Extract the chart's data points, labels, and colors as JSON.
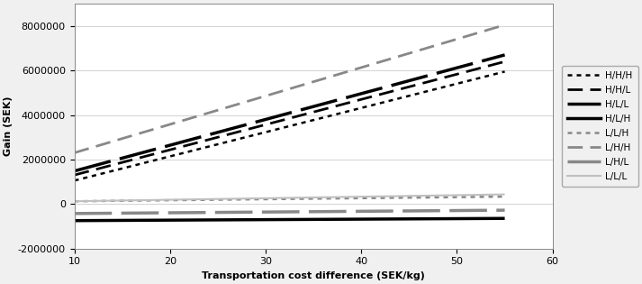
{
  "x": [
    10,
    55
  ],
  "lines": [
    {
      "label": "H/H/H",
      "y": [
        1050000,
        5950000
      ],
      "color": "#000000",
      "linestyle": "dotted",
      "linewidth": 1.8
    },
    {
      "label": "H/H/L",
      "y": [
        1300000,
        6400000
      ],
      "color": "#000000",
      "linestyle": "short_dash",
      "linewidth": 2.0
    },
    {
      "label": "H/L/L",
      "y": [
        1480000,
        6700000
      ],
      "color": "#000000",
      "linestyle": "long_dash",
      "linewidth": 2.5
    },
    {
      "label": "H/L/H",
      "y": [
        -750000,
        -650000
      ],
      "color": "#000000",
      "linestyle": "solid",
      "linewidth": 2.5
    },
    {
      "label": "L/L/H",
      "y": [
        120000,
        330000
      ],
      "color": "#888888",
      "linestyle": "dotted",
      "linewidth": 1.8
    },
    {
      "label": "L/H/H",
      "y": [
        2300000,
        8050000
      ],
      "color": "#888888",
      "linestyle": "short_dash",
      "linewidth": 2.0
    },
    {
      "label": "L/H/L",
      "y": [
        -430000,
        -280000
      ],
      "color": "#888888",
      "linestyle": "long_dash",
      "linewidth": 2.5
    },
    {
      "label": "L/L/L",
      "y": [
        120000,
        430000
      ],
      "color": "#c0c0c0",
      "linestyle": "solid",
      "linewidth": 1.5
    }
  ],
  "xlim": [
    10,
    60
  ],
  "ylim": [
    -2000000,
    9000000
  ],
  "xticks": [
    10,
    20,
    30,
    40,
    50,
    60
  ],
  "yticks": [
    -2000000,
    0,
    2000000,
    4000000,
    6000000,
    8000000
  ],
  "xlabel": "Transportation cost difference (SEK/kg)",
  "ylabel": "Gain (SEK)",
  "figsize": [
    7.13,
    3.15
  ],
  "dpi": 100,
  "bg_color": "#f0f0f0",
  "plot_bg_color": "#ffffff"
}
